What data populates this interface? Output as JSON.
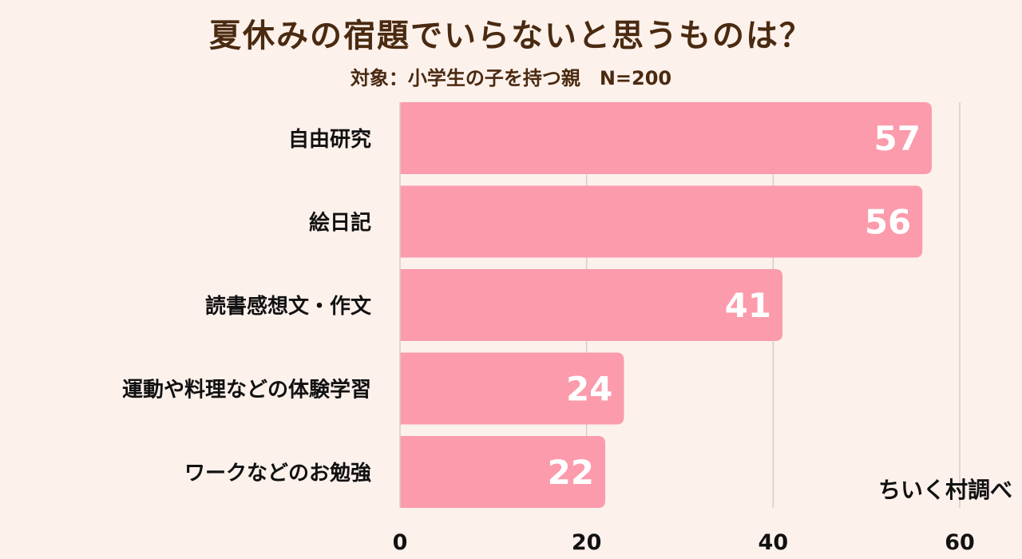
{
  "header": {
    "title": "夏休みの宿題でいらないと思うものは？",
    "subtitle": "対象：小学生の子を持つ親　N=200"
  },
  "footer": {
    "credit": "ちいく村調べ"
  },
  "colors": {
    "background": "#fdf1ec",
    "bar": "#fb9bab",
    "bar_label": "#ffffff",
    "text": "#111111",
    "title": "#4a2a10",
    "grid": "#d6cdca"
  },
  "chart_data": {
    "type": "bar",
    "orientation": "horizontal",
    "categories": [
      "自由研究",
      "絵日記",
      "読書感想文・作文",
      "運動や料理などの体験学習",
      "ワークなどのお勉強"
    ],
    "values": [
      57,
      56,
      41,
      24,
      22
    ],
    "xlim": [
      0,
      60
    ],
    "xticks": [
      "0",
      "20",
      "40",
      "60"
    ],
    "grid": true,
    "data_labels": true
  }
}
